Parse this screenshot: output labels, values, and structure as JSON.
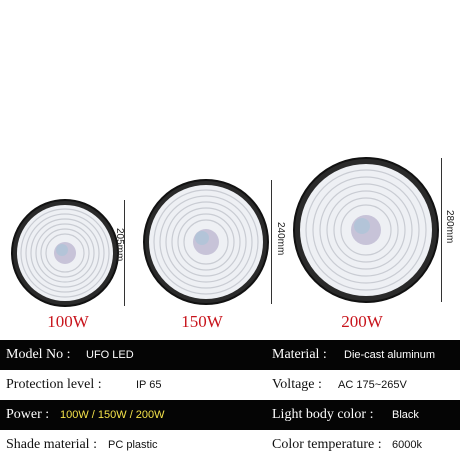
{
  "products": [
    {
      "power": "100W",
      "size": "205mm"
    },
    {
      "power": "150W",
      "size": "240mm"
    },
    {
      "power": "200W",
      "size": "280mm"
    }
  ],
  "specs": [
    {
      "theme": "dark",
      "left_key": "Model No :",
      "left_val": "UFO LED",
      "right_key": "Material :",
      "right_val": "Die-cast aluminum"
    },
    {
      "theme": "light",
      "left_key": "Protection level :",
      "left_val": "IP 65",
      "right_key": "Voltage :",
      "right_val": "AC 175~265V"
    },
    {
      "theme": "dark",
      "left_key": "Power :",
      "left_val": "100W / 150W / 200W",
      "right_key": "Light body color :",
      "right_val": "Black"
    },
    {
      "theme": "light",
      "left_key": "Shade material :",
      "left_val": "PC plastic",
      "right_key": "Color temperature :",
      "right_val": "6000k"
    }
  ],
  "colors": {
    "accent_red": "#c8141c",
    "highlight_yellow": "#f4e24a",
    "band_dark": "#050505"
  }
}
